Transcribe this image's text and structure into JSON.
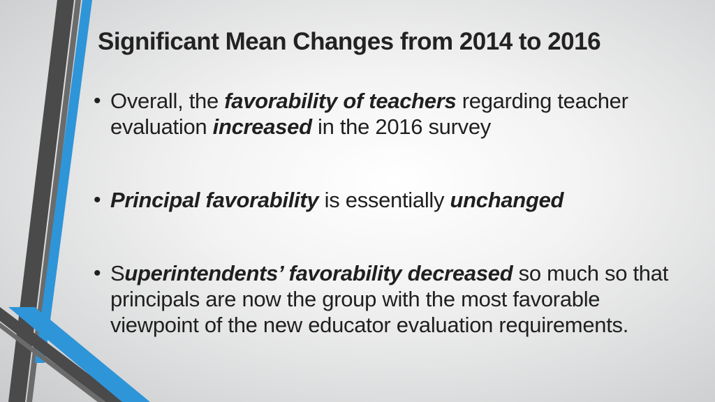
{
  "slide": {
    "title": "Significant Mean Changes from 2014 to 2016",
    "bullets": [
      {
        "parts": [
          {
            "text": "Overall, the ",
            "style": "normal"
          },
          {
            "text": "favorability of teachers",
            "style": "emphasis"
          },
          {
            "text": " regarding teacher evaluation ",
            "style": "normal"
          },
          {
            "text": "increased",
            "style": "emphasis"
          },
          {
            "text": " in the 2016 survey",
            "style": "normal"
          }
        ]
      },
      {
        "parts": [
          {
            "text": "Principal favorability",
            "style": "emphasis"
          },
          {
            "text": " is essentially ",
            "style": "normal"
          },
          {
            "text": "unchanged",
            "style": "emphasis"
          }
        ]
      },
      {
        "parts": [
          {
            "text": "S",
            "style": "normal"
          },
          {
            "text": "uperintendents’ favorability decreased",
            "style": "emphasis"
          },
          {
            "text": " so much so that principals are now the group with the most favorable viewpoint of the new educator evaluation requirements.",
            "style": "normal"
          }
        ]
      }
    ],
    "bullet_glyph": "•"
  },
  "theme": {
    "accent_blue": "#2e95d8",
    "stripe_dark": "#4a4a4a",
    "stripe_mid": "#6b6b6b",
    "text_color": "#1f1f1f"
  }
}
